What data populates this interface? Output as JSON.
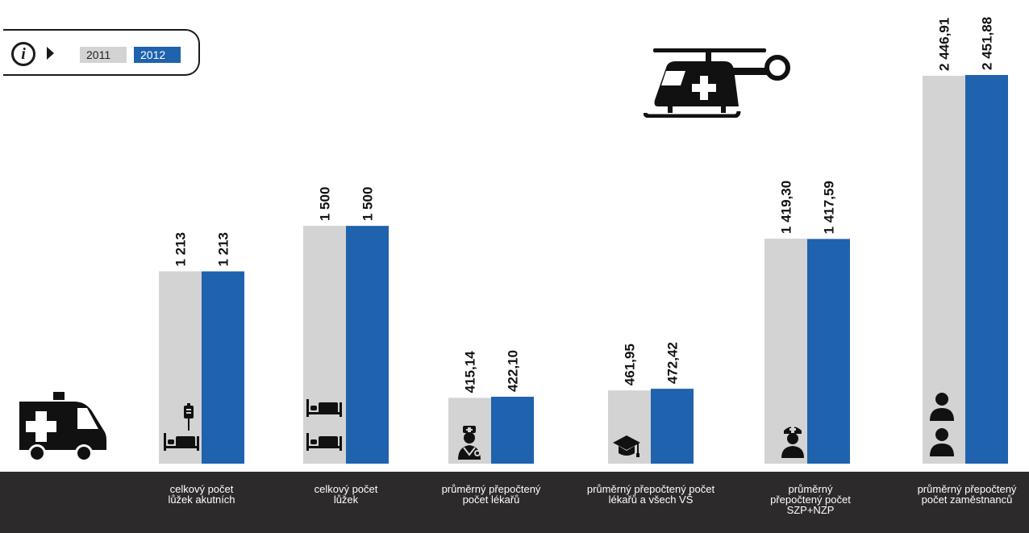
{
  "legend": {
    "series_2011": "2011",
    "series_2012": "2012",
    "info_icon": "info-icon"
  },
  "colors": {
    "series_2011": "#d3d3d3",
    "series_2012": "#1f62ad",
    "footer": "#2d2a2b",
    "icons": "#111111"
  },
  "chart_data": {
    "type": "bar",
    "categories": [
      "celkový počet\nlůžek akutních",
      "celkový počet\nlůžek",
      "průměrný přepočtený\npočet lékařů",
      "průměrný přepočtený počet\nlékařů a všech VŠ",
      "průměrný\npřepočtený počet\nSZP+NZP",
      "průměrný přepočtený\npočet zaměstnanců"
    ],
    "series": [
      {
        "name": "2011",
        "values": [
          1213,
          1500,
          415.14,
          461.95,
          1419.3,
          2446.91
        ],
        "labels": [
          "1 213",
          "1 500",
          "415,14",
          "461,95",
          "1 419,30",
          "2 446,91"
        ]
      },
      {
        "name": "2012",
        "values": [
          1213,
          1500,
          422.1,
          472.42,
          1417.59,
          2451.88
        ],
        "labels": [
          "1 213",
          "1 500",
          "422,10",
          "472,42",
          "1 417,59",
          "2 451,88"
        ]
      }
    ],
    "ylim": [
      0,
      2451.88
    ],
    "legend_position": "top-left",
    "grid": false
  },
  "icons": {
    "ambulance": "ambulance-icon",
    "helicopter": "helicopter-icon",
    "iv_bag": "iv-bag-icon",
    "hospital_bed": "hospital-bed-icon",
    "doctor": "doctor-icon",
    "graduate": "graduate-cap-icon",
    "nurse": "nurse-icon",
    "person": "person-icon"
  }
}
